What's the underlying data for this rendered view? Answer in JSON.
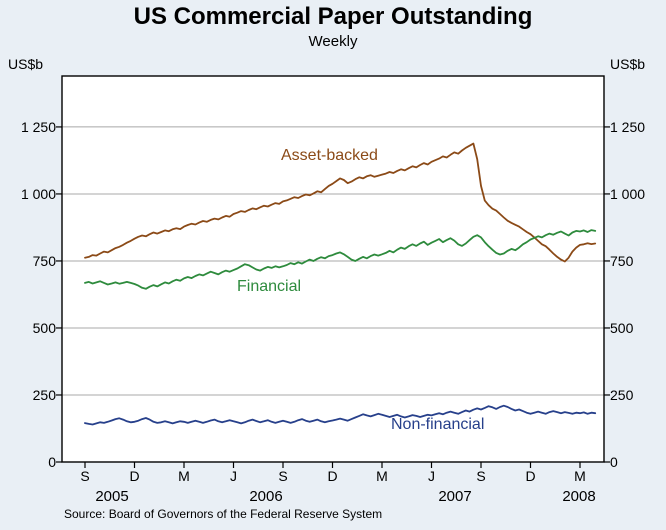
{
  "page": {
    "background": "#e9eff5"
  },
  "source": "Source: Board of Governors of the Federal Reserve System",
  "chart_data": {
    "type": "line",
    "title": "US Commercial Paper Outstanding",
    "subtitle": "Weekly",
    "ylabel": "US$b",
    "ylabel_right": "US$b",
    "ylim": [
      0,
      1440
    ],
    "yticks": [
      0,
      250,
      500,
      750,
      1000,
      1250
    ],
    "ytick_labels": [
      "0",
      "250",
      "500",
      "750",
      "1 000",
      "1 250"
    ],
    "xticks": [
      "S",
      "D",
      "M",
      "J",
      "S",
      "D",
      "M",
      "J",
      "S",
      "D",
      "M"
    ],
    "year_labels": [
      "2005",
      "2006",
      "2007",
      "2008"
    ],
    "x_range": [
      "Sep 2005",
      "Mar 2008"
    ],
    "grid": "horizontal",
    "legend_position": "inline-labels",
    "series": [
      {
        "name": "Asset-backed",
        "color": "#8b4a17",
        "values": [
          762,
          765,
          772,
          770,
          778,
          785,
          782,
          790,
          798,
          803,
          810,
          818,
          825,
          833,
          840,
          845,
          842,
          850,
          856,
          852,
          858,
          864,
          861,
          868,
          872,
          869,
          878,
          884,
          889,
          886,
          893,
          899,
          896,
          903,
          908,
          905,
          912,
          918,
          915,
          925,
          930,
          936,
          933,
          940,
          946,
          943,
          950,
          956,
          953,
          960,
          966,
          963,
          972,
          976,
          982,
          988,
          985,
          992,
          998,
          995,
          1002,
          1010,
          1006,
          1018,
          1030,
          1038,
          1048,
          1058,
          1052,
          1040,
          1046,
          1055,
          1062,
          1058,
          1066,
          1070,
          1064,
          1068,
          1072,
          1076,
          1082,
          1078,
          1086,
          1092,
          1088,
          1096,
          1103,
          1099,
          1108,
          1115,
          1110,
          1120,
          1126,
          1132,
          1140,
          1136,
          1146,
          1155,
          1150,
          1162,
          1172,
          1180,
          1188,
          1130,
          1030,
          975,
          958,
          945,
          938,
          925,
          912,
          900,
          892,
          885,
          878,
          868,
          858,
          850,
          838,
          825,
          812,
          805,
          792,
          778,
          765,
          755,
          748,
          762,
          785,
          800,
          810,
          812,
          816,
          813,
          815
        ]
      },
      {
        "name": "Financial",
        "color": "#2e8b3d",
        "values": [
          668,
          672,
          666,
          670,
          674,
          668,
          662,
          666,
          670,
          665,
          668,
          672,
          668,
          664,
          658,
          650,
          646,
          654,
          660,
          655,
          663,
          670,
          666,
          674,
          680,
          676,
          685,
          690,
          686,
          694,
          700,
          696,
          703,
          710,
          705,
          700,
          708,
          714,
          710,
          716,
          722,
          730,
          738,
          734,
          726,
          718,
          714,
          722,
          728,
          724,
          730,
          726,
          730,
          735,
          742,
          738,
          745,
          740,
          748,
          755,
          750,
          758,
          764,
          760,
          768,
          772,
          778,
          782,
          775,
          765,
          755,
          750,
          758,
          765,
          760,
          768,
          774,
          770,
          775,
          780,
          788,
          782,
          792,
          800,
          795,
          805,
          812,
          806,
          815,
          822,
          810,
          818,
          825,
          832,
          820,
          828,
          835,
          826,
          812,
          806,
          815,
          828,
          840,
          846,
          838,
          820,
          805,
          792,
          780,
          774,
          778,
          788,
          795,
          790,
          800,
          812,
          820,
          830,
          836,
          842,
          838,
          846,
          852,
          848,
          855,
          860,
          852,
          845,
          856,
          862,
          860,
          864,
          858,
          865,
          862
        ]
      },
      {
        "name": "Non-financial",
        "color": "#27408b",
        "values": [
          145,
          142,
          140,
          144,
          148,
          146,
          150,
          155,
          160,
          163,
          158,
          152,
          148,
          150,
          154,
          160,
          164,
          158,
          150,
          146,
          148,
          152,
          148,
          144,
          148,
          152,
          150,
          146,
          150,
          154,
          150,
          146,
          150,
          155,
          158,
          152,
          148,
          152,
          156,
          152,
          148,
          144,
          148,
          154,
          158,
          153,
          148,
          152,
          156,
          150,
          146,
          150,
          154,
          150,
          146,
          150,
          156,
          160,
          154,
          150,
          154,
          158,
          152,
          148,
          152,
          155,
          158,
          162,
          158,
          154,
          160,
          166,
          172,
          178,
          174,
          170,
          175,
          180,
          176,
          172,
          168,
          172,
          176,
          170,
          166,
          170,
          175,
          172,
          168,
          172,
          176,
          174,
          178,
          182,
          178,
          184,
          188,
          184,
          180,
          186,
          192,
          188,
          195,
          200,
          196,
          202,
          208,
          204,
          198,
          205,
          210,
          205,
          198,
          192,
          196,
          190,
          184,
          180,
          184,
          188,
          184,
          180,
          186,
          190,
          186,
          182,
          186,
          183,
          180,
          184,
          182,
          185,
          180,
          184,
          182
        ]
      }
    ]
  }
}
